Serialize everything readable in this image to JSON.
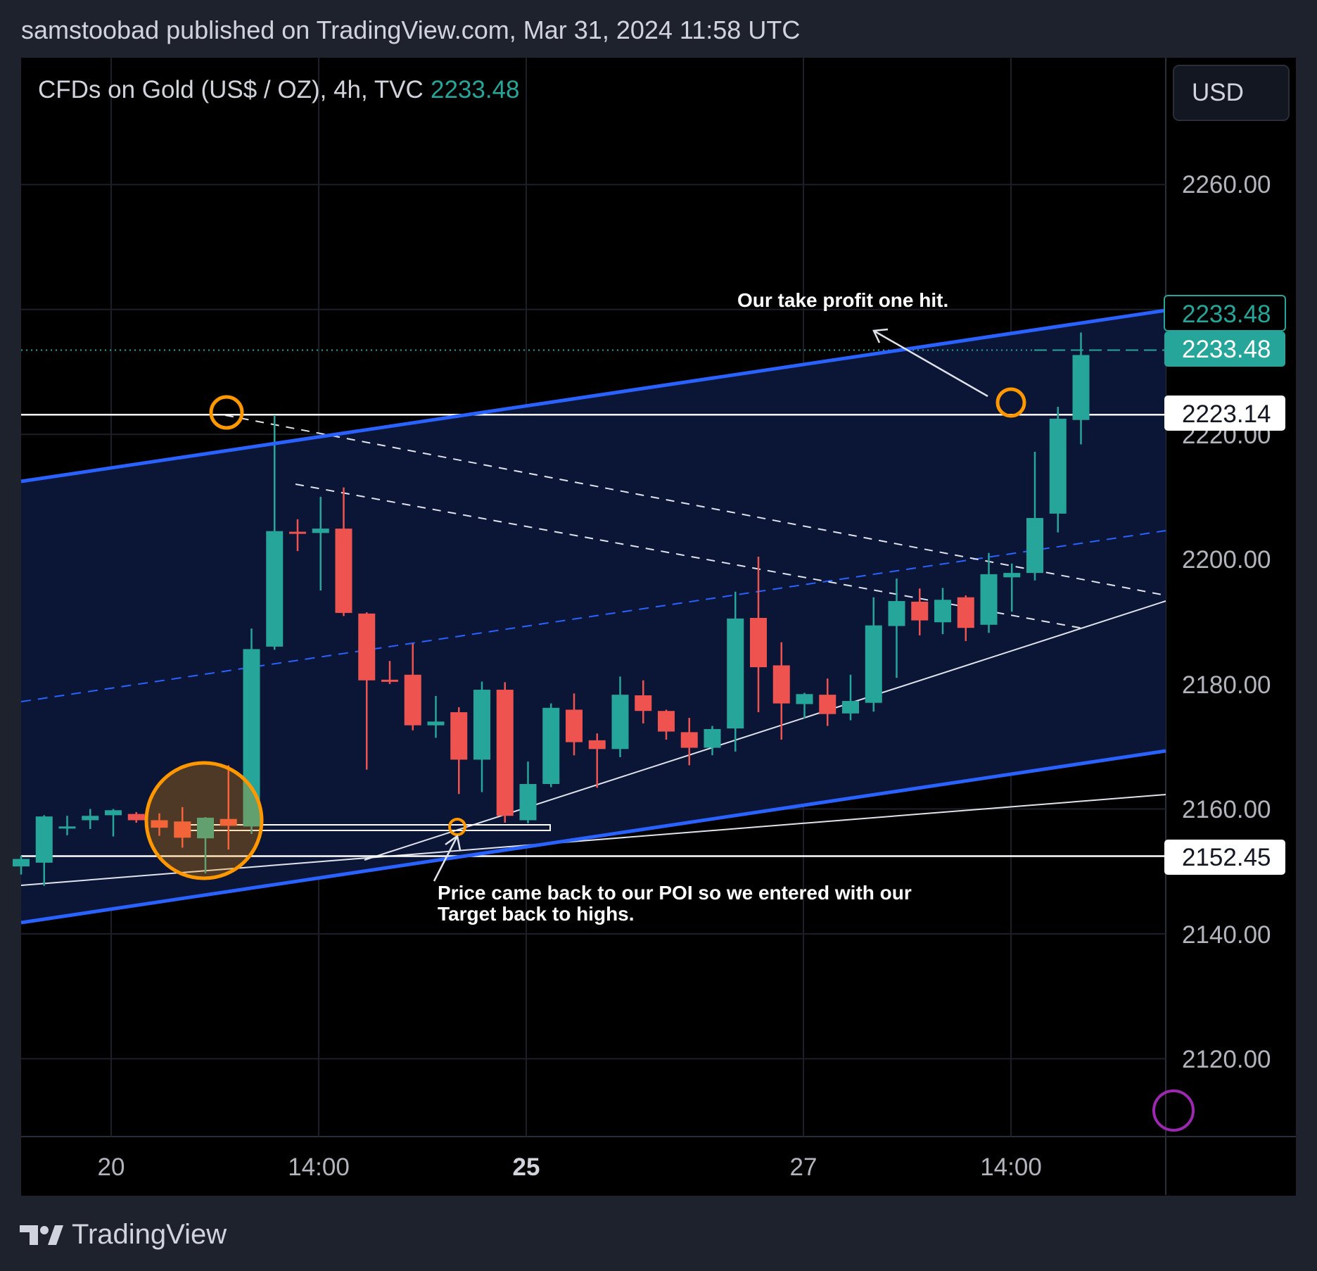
{
  "header": {
    "publisher_line": "samstoobad published on TradingView.com, Mar 31, 2024 11:58 UTC"
  },
  "legend": {
    "symbol": "CFDs on Gold (US$ / OZ), 4h, TVC",
    "last_price": "2233.48"
  },
  "currency_button": "USD",
  "price_axis": {
    "ticks": [
      "2260.00",
      "2220.00",
      "2200.00",
      "2180.00",
      "2160.00",
      "2140.00",
      "2120.00"
    ]
  },
  "price_labels": {
    "upper_channel": "2233.48",
    "last": "2233.48",
    "high_line": "2223.14",
    "low_line": "2152.45"
  },
  "time_axis": {
    "ticks": [
      "20",
      "14:00",
      "25",
      "27",
      "14:00"
    ]
  },
  "annotations": {
    "take_profit": "Our take profit one hit.",
    "poi_line1": "Price came back to our POI so we entered with our",
    "poi_line2": "Target back to highs."
  },
  "footer": {
    "brand": "TradingView"
  },
  "colors": {
    "up": "#26a69a",
    "down": "#ef5350",
    "channel": "#2962ff",
    "channel_fill": "#0b1636",
    "circle": "#ff9800"
  },
  "chart_data": {
    "type": "candlestick",
    "symbol": "CFDs on Gold (US$ / OZ)",
    "interval": "4h",
    "ylim": [
      2108,
      2280
    ],
    "candles": [
      {
        "o": 2150.8,
        "h": 2152.5,
        "l": 2149.5,
        "c": 2152.0
      },
      {
        "o": 2151.4,
        "h": 2159.0,
        "l": 2147.7,
        "c": 2158.8
      },
      {
        "o": 2157.0,
        "h": 2158.9,
        "l": 2155.8,
        "c": 2157.2
      },
      {
        "o": 2158.2,
        "h": 2160.0,
        "l": 2156.8,
        "c": 2158.9
      },
      {
        "o": 2159.0,
        "h": 2160.0,
        "l": 2155.6,
        "c": 2159.8
      },
      {
        "o": 2159.2,
        "h": 2159.5,
        "l": 2157.8,
        "c": 2158.2
      },
      {
        "o": 2158.2,
        "h": 2159.3,
        "l": 2155.7,
        "c": 2157.0
      },
      {
        "o": 2158.0,
        "h": 2160.3,
        "l": 2153.8,
        "c": 2155.4
      },
      {
        "o": 2155.3,
        "h": 2158.7,
        "l": 2149.7,
        "c": 2158.6
      },
      {
        "o": 2158.4,
        "h": 2167.0,
        "l": 2153.5,
        "c": 2157.3
      },
      {
        "o": 2157.2,
        "h": 2188.9,
        "l": 2156.0,
        "c": 2185.6
      },
      {
        "o": 2186.0,
        "h": 2223.1,
        "l": 2185.5,
        "c": 2204.5
      },
      {
        "o": 2204.4,
        "h": 2206.4,
        "l": 2201.3,
        "c": 2204.1
      },
      {
        "o": 2204.2,
        "h": 2210.0,
        "l": 2195.0,
        "c": 2204.9
      },
      {
        "o": 2204.9,
        "h": 2211.5,
        "l": 2190.9,
        "c": 2191.4
      },
      {
        "o": 2191.3,
        "h": 2191.5,
        "l": 2166.3,
        "c": 2180.6
      },
      {
        "o": 2180.7,
        "h": 2183.7,
        "l": 2180.0,
        "c": 2180.5
      },
      {
        "o": 2181.5,
        "h": 2186.5,
        "l": 2172.6,
        "c": 2173.4
      },
      {
        "o": 2173.4,
        "h": 2178.1,
        "l": 2171.4,
        "c": 2174.0
      },
      {
        "o": 2175.5,
        "h": 2176.3,
        "l": 2162.4,
        "c": 2167.9
      },
      {
        "o": 2167.9,
        "h": 2180.4,
        "l": 2162.7,
        "c": 2179.1
      },
      {
        "o": 2179.1,
        "h": 2180.3,
        "l": 2157.8,
        "c": 2158.9
      },
      {
        "o": 2158.2,
        "h": 2167.6,
        "l": 2157.7,
        "c": 2164.0
      },
      {
        "o": 2164.0,
        "h": 2176.9,
        "l": 2163.5,
        "c": 2176.2
      },
      {
        "o": 2175.9,
        "h": 2178.5,
        "l": 2168.6,
        "c": 2170.7
      },
      {
        "o": 2171.0,
        "h": 2172.1,
        "l": 2163.4,
        "c": 2169.6
      },
      {
        "o": 2169.6,
        "h": 2181.2,
        "l": 2168.3,
        "c": 2178.3
      },
      {
        "o": 2178.2,
        "h": 2180.6,
        "l": 2173.7,
        "c": 2175.7
      },
      {
        "o": 2175.7,
        "h": 2175.9,
        "l": 2171.1,
        "c": 2172.4
      },
      {
        "o": 2172.3,
        "h": 2174.6,
        "l": 2167.0,
        "c": 2169.8
      },
      {
        "o": 2169.8,
        "h": 2173.3,
        "l": 2168.6,
        "c": 2172.8
      },
      {
        "o": 2172.9,
        "h": 2194.8,
        "l": 2169.2,
        "c": 2190.5
      },
      {
        "o": 2190.6,
        "h": 2200.4,
        "l": 2175.5,
        "c": 2182.7
      },
      {
        "o": 2183.0,
        "h": 2186.7,
        "l": 2171.1,
        "c": 2176.9
      },
      {
        "o": 2176.8,
        "h": 2178.6,
        "l": 2174.5,
        "c": 2178.4
      },
      {
        "o": 2178.3,
        "h": 2180.9,
        "l": 2173.3,
        "c": 2175.2
      },
      {
        "o": 2175.3,
        "h": 2181.5,
        "l": 2174.2,
        "c": 2177.3
      },
      {
        "o": 2177.0,
        "h": 2193.9,
        "l": 2175.6,
        "c": 2189.4
      },
      {
        "o": 2189.3,
        "h": 2196.9,
        "l": 2181.0,
        "c": 2193.3
      },
      {
        "o": 2193.2,
        "h": 2195.3,
        "l": 2187.8,
        "c": 2190.2
      },
      {
        "o": 2189.9,
        "h": 2195.4,
        "l": 2188.0,
        "c": 2193.5
      },
      {
        "o": 2193.9,
        "h": 2194.2,
        "l": 2186.9,
        "c": 2189.0
      },
      {
        "o": 2189.5,
        "h": 2201.0,
        "l": 2188.2,
        "c": 2197.6
      },
      {
        "o": 2197.1,
        "h": 2199.3,
        "l": 2191.6,
        "c": 2197.8
      },
      {
        "o": 2197.8,
        "h": 2217.2,
        "l": 2196.6,
        "c": 2206.6
      },
      {
        "o": 2207.3,
        "h": 2224.4,
        "l": 2204.3,
        "c": 2222.5
      },
      {
        "o": 2222.3,
        "h": 2236.3,
        "l": 2218.4,
        "c": 2232.7
      }
    ],
    "horizontal_levels": [
      2223.14,
      2152.45
    ],
    "last_price": 2233.48
  }
}
